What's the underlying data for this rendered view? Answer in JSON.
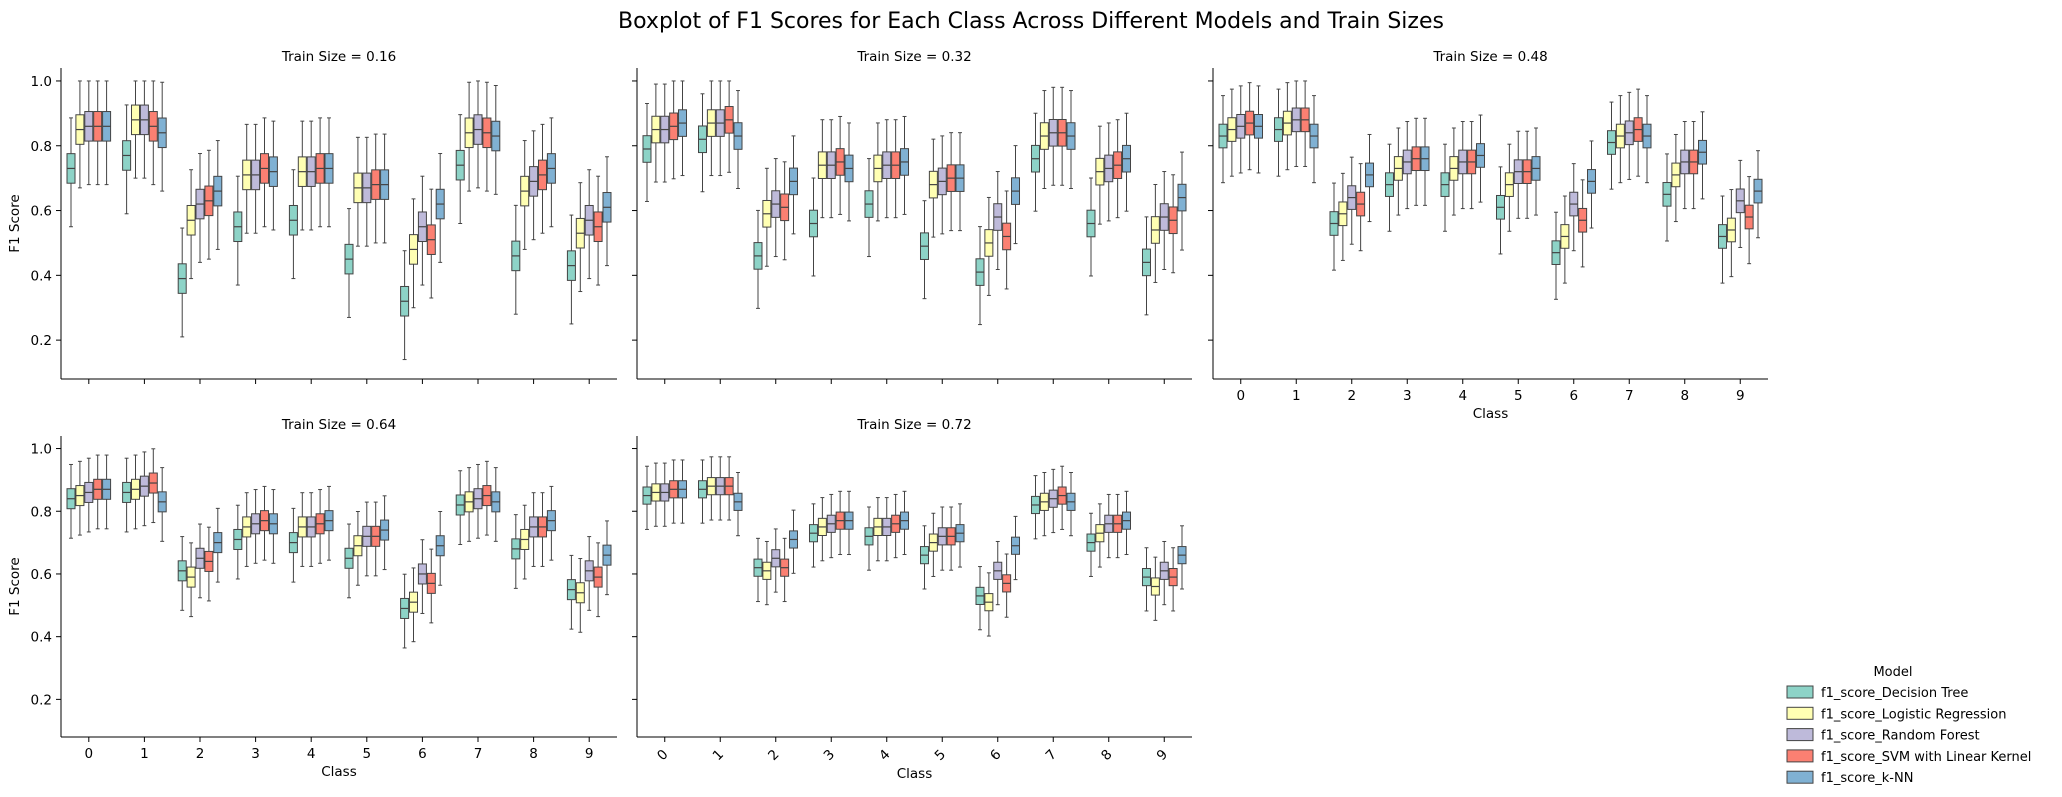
{
  "title": "Boxplot of F1 Scores for Each Class Across Different Models and Train Sizes",
  "chart_data": {
    "type": "boxplot",
    "ylabel": "F1 Score",
    "xlabel": "Class",
    "ylim": [
      0.08,
      1.04
    ],
    "yticks": [
      "0.2",
      "0.4",
      "0.6",
      "0.8",
      "1.0"
    ],
    "categories": [
      "0",
      "1",
      "2",
      "3",
      "4",
      "5",
      "6",
      "7",
      "8",
      "9"
    ],
    "legend": {
      "title": "Model",
      "position": "bottom-right",
      "entries": [
        {
          "name": "f1_score_Decision Tree",
          "color": "#8dd3c7"
        },
        {
          "name": "f1_score_Logistic Regression",
          "color": "#ffffb3"
        },
        {
          "name": "f1_score_Random Forest",
          "color": "#bebada"
        },
        {
          "name": "f1_score_SVM with Linear Kernel",
          "color": "#fb8072"
        },
        {
          "name": "f1_score_k-NN",
          "color": "#80b1d3"
        }
      ]
    },
    "panels": [
      {
        "title": "Train Size = 0.16",
        "medians": [
          [
            0.73,
            0.85,
            0.86,
            0.86,
            0.86
          ],
          [
            0.77,
            0.88,
            0.88,
            0.86,
            0.84
          ],
          [
            0.39,
            0.57,
            0.62,
            0.63,
            0.66
          ],
          [
            0.55,
            0.71,
            0.71,
            0.73,
            0.72
          ],
          [
            0.57,
            0.72,
            0.72,
            0.73,
            0.73
          ],
          [
            0.45,
            0.67,
            0.67,
            0.68,
            0.68
          ],
          [
            0.32,
            0.48,
            0.55,
            0.51,
            0.62
          ],
          [
            0.74,
            0.84,
            0.85,
            0.84,
            0.83
          ],
          [
            0.46,
            0.66,
            0.69,
            0.71,
            0.73
          ],
          [
            0.43,
            0.53,
            0.57,
            0.55,
            0.61
          ]
        ]
      },
      {
        "title": "Train Size = 0.32",
        "medians": [
          [
            0.79,
            0.85,
            0.85,
            0.86,
            0.87
          ],
          [
            0.82,
            0.87,
            0.87,
            0.88,
            0.83
          ],
          [
            0.46,
            0.59,
            0.62,
            0.61,
            0.69
          ],
          [
            0.56,
            0.74,
            0.74,
            0.75,
            0.73
          ],
          [
            0.62,
            0.73,
            0.74,
            0.74,
            0.75
          ],
          [
            0.49,
            0.68,
            0.69,
            0.7,
            0.7
          ],
          [
            0.41,
            0.5,
            0.58,
            0.52,
            0.66
          ],
          [
            0.76,
            0.83,
            0.84,
            0.84,
            0.83
          ],
          [
            0.56,
            0.72,
            0.73,
            0.74,
            0.76
          ],
          [
            0.44,
            0.54,
            0.58,
            0.57,
            0.64
          ]
        ]
      },
      {
        "title": "Train Size = 0.48",
        "medians": [
          [
            0.83,
            0.85,
            0.86,
            0.87,
            0.86
          ],
          [
            0.85,
            0.87,
            0.88,
            0.88,
            0.83
          ],
          [
            0.56,
            0.59,
            0.64,
            0.62,
            0.71
          ],
          [
            0.68,
            0.73,
            0.75,
            0.76,
            0.76
          ],
          [
            0.68,
            0.73,
            0.75,
            0.75,
            0.77
          ],
          [
            0.61,
            0.68,
            0.72,
            0.72,
            0.73
          ],
          [
            0.47,
            0.52,
            0.62,
            0.57,
            0.69
          ],
          [
            0.81,
            0.83,
            0.84,
            0.85,
            0.83
          ],
          [
            0.65,
            0.71,
            0.75,
            0.75,
            0.78
          ],
          [
            0.52,
            0.54,
            0.63,
            0.58,
            0.66
          ]
        ]
      },
      {
        "title": "Train Size = 0.64",
        "medians": [
          [
            0.84,
            0.85,
            0.86,
            0.87,
            0.87
          ],
          [
            0.86,
            0.87,
            0.88,
            0.89,
            0.83
          ],
          [
            0.61,
            0.59,
            0.65,
            0.64,
            0.7
          ],
          [
            0.71,
            0.75,
            0.76,
            0.77,
            0.76
          ],
          [
            0.7,
            0.75,
            0.75,
            0.76,
            0.77
          ],
          [
            0.65,
            0.69,
            0.72,
            0.72,
            0.74
          ],
          [
            0.49,
            0.51,
            0.6,
            0.57,
            0.69
          ],
          [
            0.82,
            0.83,
            0.84,
            0.85,
            0.83
          ],
          [
            0.68,
            0.71,
            0.75,
            0.75,
            0.77
          ],
          [
            0.55,
            0.54,
            0.61,
            0.59,
            0.66
          ]
        ]
      },
      {
        "title": "Train Size = 0.72",
        "medians": [
          [
            0.85,
            0.86,
            0.86,
            0.87,
            0.87
          ],
          [
            0.87,
            0.88,
            0.88,
            0.88,
            0.83
          ],
          [
            0.62,
            0.61,
            0.65,
            0.62,
            0.71
          ],
          [
            0.73,
            0.75,
            0.76,
            0.77,
            0.77
          ],
          [
            0.72,
            0.75,
            0.75,
            0.76,
            0.77
          ],
          [
            0.66,
            0.7,
            0.72,
            0.72,
            0.73
          ],
          [
            0.53,
            0.51,
            0.61,
            0.57,
            0.69
          ],
          [
            0.82,
            0.83,
            0.84,
            0.85,
            0.83
          ],
          [
            0.7,
            0.73,
            0.76,
            0.76,
            0.77
          ],
          [
            0.59,
            0.56,
            0.61,
            0.59,
            0.66
          ]
        ]
      }
    ]
  }
}
